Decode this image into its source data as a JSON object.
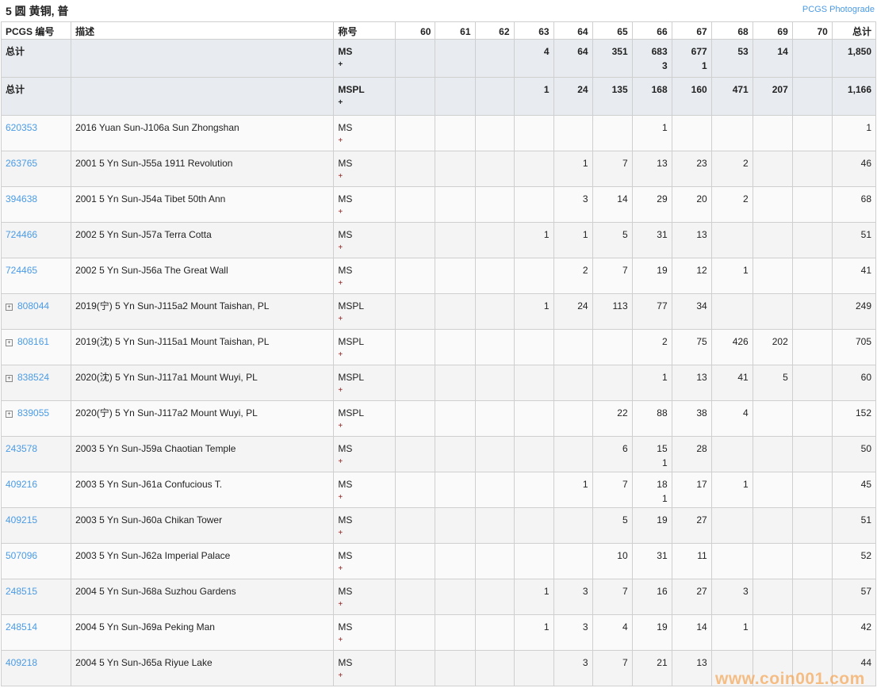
{
  "title": "5 圆 黄铜, 普",
  "photograde_link": "PCGS Photograde",
  "headers": {
    "pcgs_no": "PCGS 编号",
    "desc": "描述",
    "designation": "称号",
    "grades": [
      "60",
      "61",
      "62",
      "63",
      "64",
      "65",
      "66",
      "67",
      "68",
      "69",
      "70"
    ],
    "total": "总计"
  },
  "totals": [
    {
      "label": "总计",
      "designation": "MS",
      "plus": "+",
      "cells": [
        "",
        "",
        "",
        "4",
        "64",
        "351",
        "683\n3",
        "677\n1",
        "53",
        "14",
        ""
      ],
      "total": "1,850"
    },
    {
      "label": "总计",
      "designation": "MSPL",
      "plus": "+",
      "cells": [
        "",
        "",
        "",
        "1",
        "24",
        "135",
        "168",
        "160",
        "471",
        "207",
        ""
      ],
      "total": "1,166"
    }
  ],
  "rows": [
    {
      "id": "620353",
      "expand": false,
      "desc": "2016 Yuan Sun-J106a Sun Zhongshan",
      "designation": "MS",
      "plus": "+",
      "cells": [
        "",
        "",
        "",
        "",
        "",
        "",
        "1",
        "",
        "",
        "",
        ""
      ],
      "total": "1"
    },
    {
      "id": "263765",
      "expand": false,
      "desc": "2001 5 Yn Sun-J55a 1911 Revolution",
      "designation": "MS",
      "plus": "+",
      "cells": [
        "",
        "",
        "",
        "",
        "1",
        "7",
        "13",
        "23",
        "2",
        "",
        ""
      ],
      "total": "46"
    },
    {
      "id": "394638",
      "expand": false,
      "desc": "2001 5 Yn Sun-J54a Tibet 50th Ann",
      "designation": "MS",
      "plus": "+",
      "cells": [
        "",
        "",
        "",
        "",
        "3",
        "14",
        "29",
        "20",
        "2",
        "",
        ""
      ],
      "total": "68"
    },
    {
      "id": "724466",
      "expand": false,
      "desc": "2002 5 Yn Sun-J57a Terra Cotta",
      "designation": "MS",
      "plus": "+",
      "cells": [
        "",
        "",
        "",
        "1",
        "1",
        "5",
        "31",
        "13",
        "",
        "",
        ""
      ],
      "total": "51"
    },
    {
      "id": "724465",
      "expand": false,
      "desc": "2002 5 Yn Sun-J56a The Great Wall",
      "designation": "MS",
      "plus": "+",
      "cells": [
        "",
        "",
        "",
        "",
        "2",
        "7",
        "19",
        "12",
        "1",
        "",
        ""
      ],
      "total": "41"
    },
    {
      "id": "808044",
      "expand": true,
      "desc": "2019(宁) 5 Yn Sun-J115a2 Mount Taishan, PL",
      "designation": "MSPL",
      "plus": "+",
      "cells": [
        "",
        "",
        "",
        "1",
        "24",
        "113",
        "77",
        "34",
        "",
        "",
        ""
      ],
      "total": "249"
    },
    {
      "id": "808161",
      "expand": true,
      "desc": "2019(沈) 5 Yn Sun-J115a1 Mount Taishan, PL",
      "designation": "MSPL",
      "plus": "+",
      "cells": [
        "",
        "",
        "",
        "",
        "",
        "",
        "2",
        "75",
        "426",
        "202",
        ""
      ],
      "total": "705"
    },
    {
      "id": "838524",
      "expand": true,
      "desc": "2020(沈) 5 Yn Sun-J117a1 Mount Wuyi, PL",
      "designation": "MSPL",
      "plus": "+",
      "cells": [
        "",
        "",
        "",
        "",
        "",
        "",
        "1",
        "13",
        "41",
        "5",
        ""
      ],
      "total": "60"
    },
    {
      "id": "839055",
      "expand": true,
      "desc": "2020(宁) 5 Yn Sun-J117a2 Mount Wuyi, PL",
      "designation": "MSPL",
      "plus": "+",
      "cells": [
        "",
        "",
        "",
        "",
        "",
        "22",
        "88",
        "38",
        "4",
        "",
        ""
      ],
      "total": "152"
    },
    {
      "id": "243578",
      "expand": false,
      "desc": "2003 5 Yn Sun-J59a Chaotian Temple",
      "designation": "MS",
      "plus": "+",
      "cells": [
        "",
        "",
        "",
        "",
        "",
        "6",
        "15\n1",
        "28",
        "",
        "",
        ""
      ],
      "total": "50"
    },
    {
      "id": "409216",
      "expand": false,
      "desc": "2003 5 Yn Sun-J61a Confucious T.",
      "designation": "MS",
      "plus": "+",
      "cells": [
        "",
        "",
        "",
        "",
        "1",
        "7",
        "18\n1",
        "17",
        "1",
        "",
        ""
      ],
      "total": "45"
    },
    {
      "id": "409215",
      "expand": false,
      "desc": "2003 5 Yn Sun-J60a Chikan Tower",
      "designation": "MS",
      "plus": "+",
      "cells": [
        "",
        "",
        "",
        "",
        "",
        "5",
        "19",
        "27",
        "",
        "",
        ""
      ],
      "total": "51"
    },
    {
      "id": "507096",
      "expand": false,
      "desc": "2003 5 Yn Sun-J62a Imperial Palace",
      "designation": "MS",
      "plus": "+",
      "cells": [
        "",
        "",
        "",
        "",
        "",
        "10",
        "31",
        "11",
        "",
        "",
        ""
      ],
      "total": "52"
    },
    {
      "id": "248515",
      "expand": false,
      "desc": "2004 5 Yn Sun-J68a Suzhou Gardens",
      "designation": "MS",
      "plus": "+",
      "cells": [
        "",
        "",
        "",
        "1",
        "3",
        "7",
        "16",
        "27",
        "3",
        "",
        ""
      ],
      "total": "57"
    },
    {
      "id": "248514",
      "expand": false,
      "desc": "2004 5 Yn Sun-J69a Peking Man",
      "designation": "MS",
      "plus": "+",
      "cells": [
        "",
        "",
        "",
        "1",
        "3",
        "4",
        "19",
        "14",
        "1",
        "",
        ""
      ],
      "total": "42"
    },
    {
      "id": "409218",
      "expand": false,
      "desc": "2004 5 Yn Sun-J65a Riyue Lake",
      "designation": "MS",
      "plus": "+",
      "cells": [
        "",
        "",
        "",
        "",
        "3",
        "7",
        "21",
        "13",
        "",
        "",
        ""
      ],
      "total": "44"
    }
  ],
  "watermark": "www.coin001.com",
  "colors": {
    "link": "#4a9be6",
    "total_row_bg": "#e8ecf0",
    "plus": "#8b1a1a",
    "watermark": "#f6a046"
  }
}
